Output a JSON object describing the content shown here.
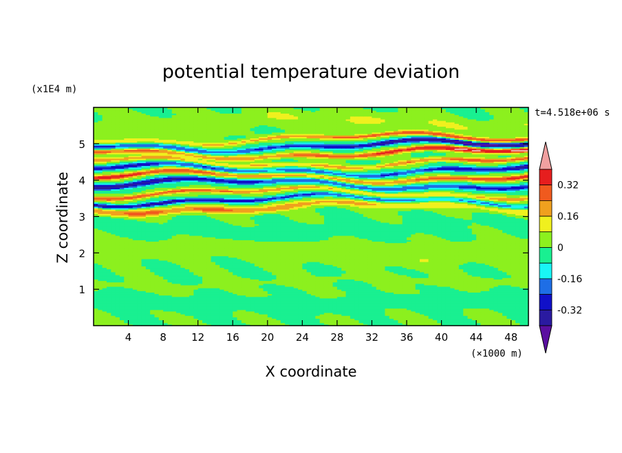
{
  "chart_data": {
    "type": "heatmap",
    "title": "potential temperature deviation",
    "xlabel": "X coordinate",
    "ylabel": "Z coordinate",
    "x_unit": "(×1000 m)",
    "y_unit": "(x1E4 m)",
    "time_label": "t=4.518e+06 s",
    "xlim": [
      0,
      50
    ],
    "ylim": [
      0,
      6
    ],
    "x_ticks": [
      "4",
      "8",
      "12",
      "16",
      "20",
      "24",
      "28",
      "32",
      "36",
      "40",
      "44",
      "48"
    ],
    "x_tick_values": [
      4,
      8,
      12,
      16,
      20,
      24,
      28,
      32,
      36,
      40,
      44,
      48
    ],
    "y_ticks": [
      "1",
      "2",
      "3",
      "4",
      "5"
    ],
    "y_tick_values": [
      1,
      2,
      3,
      4,
      5
    ],
    "colorbar": {
      "tick_labels": [
        "0.32",
        "0.16",
        "0",
        "-0.16",
        "-0.32"
      ],
      "tick_values": [
        0.32,
        0.16,
        0,
        -0.16,
        -0.32
      ],
      "levels": [
        -0.4,
        -0.32,
        -0.24,
        -0.16,
        -0.08,
        0,
        0.08,
        0.16,
        0.24,
        0.32,
        0.4
      ],
      "colors": [
        "#5a0fa0",
        "#2a1aa0",
        "#1010c8",
        "#1e6ee6",
        "#19f5f5",
        "#19f091",
        "#8cf01e",
        "#f0f01e",
        "#f0a01e",
        "#f05a1e",
        "#e61e1e",
        "#f0a0a0"
      ],
      "extend": "both"
    },
    "bands": [
      {
        "z": 0.6,
        "w": 0.18,
        "amp": -0.06
      },
      {
        "z": 1.2,
        "w": 0.1,
        "amp": 0.05
      },
      {
        "z": 2.0,
        "w": 0.25,
        "amp": 0.06
      },
      {
        "z": 2.7,
        "w": 0.2,
        "amp": -0.05
      },
      {
        "z": 3.25,
        "w": 0.1,
        "amp": 0.25
      },
      {
        "z": 3.45,
        "w": 0.06,
        "amp": -0.35
      },
      {
        "z": 3.65,
        "w": 0.06,
        "amp": 0.3
      },
      {
        "z": 3.9,
        "w": 0.08,
        "amp": -0.4
      },
      {
        "z": 4.1,
        "w": 0.07,
        "amp": 0.4
      },
      {
        "z": 4.3,
        "w": 0.07,
        "amp": -0.38
      },
      {
        "z": 4.5,
        "w": 0.06,
        "amp": 0.3
      },
      {
        "z": 4.75,
        "w": 0.07,
        "amp": 0.42
      },
      {
        "z": 4.95,
        "w": 0.07,
        "amp": -0.42
      },
      {
        "z": 5.15,
        "w": 0.06,
        "amp": 0.3
      },
      {
        "z": 5.6,
        "w": 0.2,
        "amp": 0.08
      }
    ]
  }
}
